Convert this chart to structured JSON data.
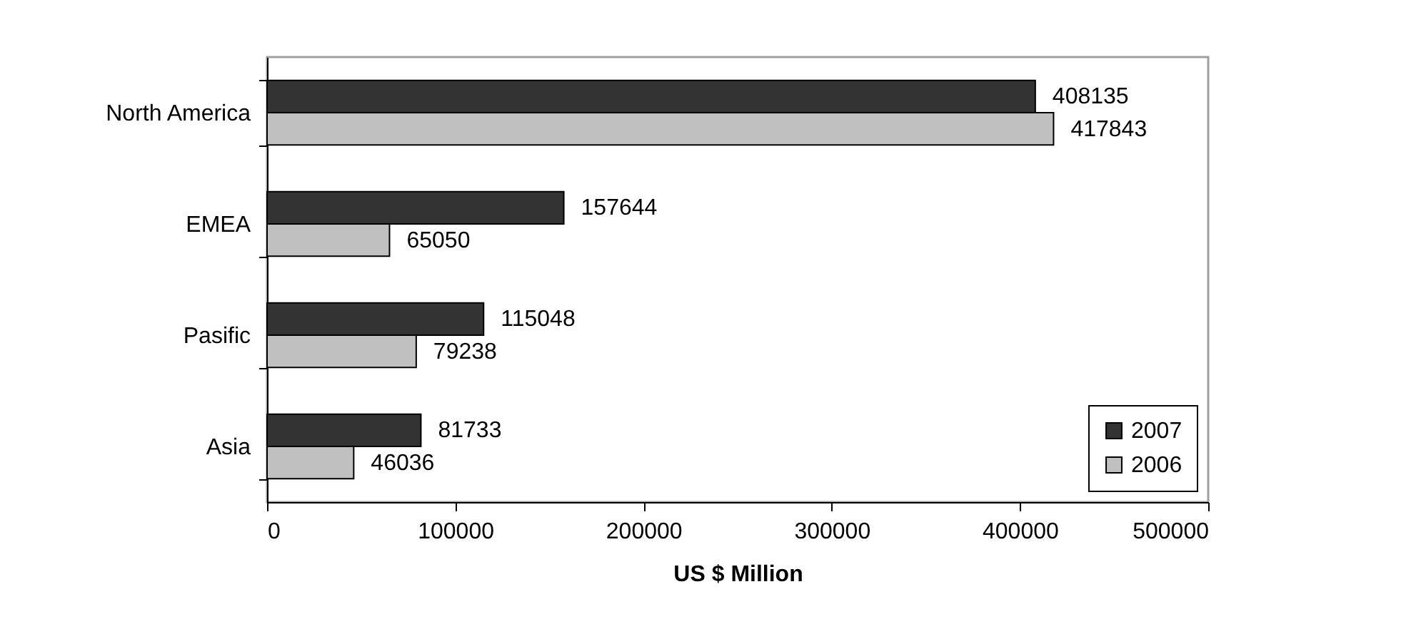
{
  "chart_data": {
    "type": "bar",
    "orientation": "horizontal",
    "categories": [
      "North America",
      "EMEA",
      "Pasific",
      "Asia"
    ],
    "series": [
      {
        "name": "2007",
        "color": "#333333",
        "values": [
          408135,
          157644,
          115048,
          81733
        ]
      },
      {
        "name": "2006",
        "color": "#c0c0c0",
        "values": [
          417843,
          65050,
          79238,
          46036
        ]
      }
    ],
    "xlabel": "US $ Million",
    "xlim": [
      0,
      500000
    ],
    "xticks": [
      0,
      100000,
      200000,
      300000,
      400000,
      500000
    ],
    "data_labels": true,
    "legend": "bottom right"
  }
}
